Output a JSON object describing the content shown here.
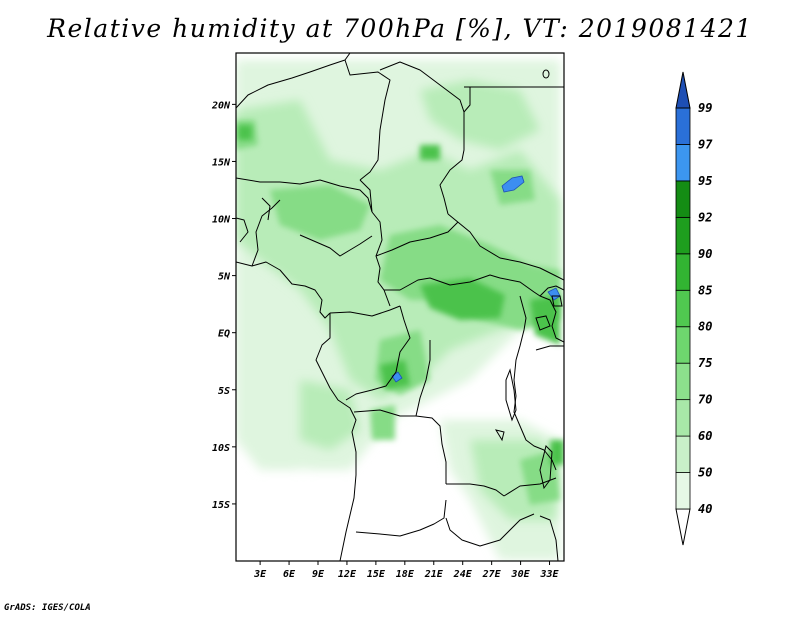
{
  "title": "Relative humidity at 700hPa [%], VT: 2019081421",
  "credit": "GrADS: IGES/COLA",
  "map": {
    "lat_labels": [
      {
        "text": "20N",
        "lat": 20
      },
      {
        "text": "15N",
        "lat": 15
      },
      {
        "text": "10N",
        "lat": 10
      },
      {
        "text": "5N",
        "lat": 5
      },
      {
        "text": "EQ",
        "lat": 0
      },
      {
        "text": "5S",
        "lat": -5
      },
      {
        "text": "10S",
        "lat": -10
      },
      {
        "text": "15S",
        "lat": -15
      }
    ],
    "lon_labels": [
      {
        "text": "3E",
        "lon": 3
      },
      {
        "text": "6E",
        "lon": 6
      },
      {
        "text": "9E",
        "lon": 9
      },
      {
        "text": "12E",
        "lon": 12
      },
      {
        "text": "15E",
        "lon": 15
      },
      {
        "text": "18E",
        "lon": 18
      },
      {
        "text": "21E",
        "lon": 21
      },
      {
        "text": "24E",
        "lon": 24
      },
      {
        "text": "27E",
        "lon": 27
      },
      {
        "text": "30E",
        "lon": 30
      },
      {
        "text": "33E",
        "lon": 33
      }
    ],
    "lat_range": [
      -20,
      24.5
    ],
    "lon_range": [
      0.5,
      34.5
    ]
  },
  "colorbar": {
    "levels": [
      "40",
      "50",
      "60",
      "70",
      "75",
      "80",
      "85",
      "90",
      "92",
      "95",
      "97",
      "99"
    ],
    "colors": [
      "#ffffff",
      "#e6f8e6",
      "#c8f0c8",
      "#a8e8a8",
      "#8ce08c",
      "#6ed66e",
      "#50c850",
      "#32b432",
      "#1e9e1e",
      "#148c14",
      "#3c96f0",
      "#2a70d8",
      "#1e4fb4"
    ]
  }
}
